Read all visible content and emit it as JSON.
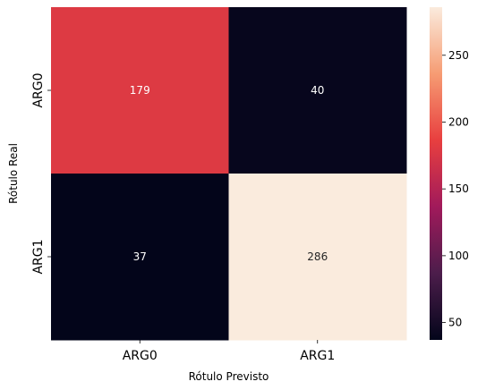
{
  "chart_data": {
    "type": "heatmap",
    "title": "",
    "xlabel": "Rótulo Previsto",
    "ylabel": "Rótulo Real",
    "x_categories": [
      "ARG0",
      "ARG1"
    ],
    "y_categories": [
      "ARG0",
      "ARG1"
    ],
    "values": [
      [
        179,
        40
      ],
      [
        37,
        286
      ]
    ],
    "colorbar": {
      "range": [
        37,
        286
      ],
      "ticks": [
        50,
        100,
        150,
        200,
        250
      ],
      "colormap": "rocket",
      "colors": [
        "#03051a",
        "#4c1d4b",
        "#a11a5b",
        "#e83f3f",
        "#f69c73",
        "#faebdd"
      ]
    }
  }
}
